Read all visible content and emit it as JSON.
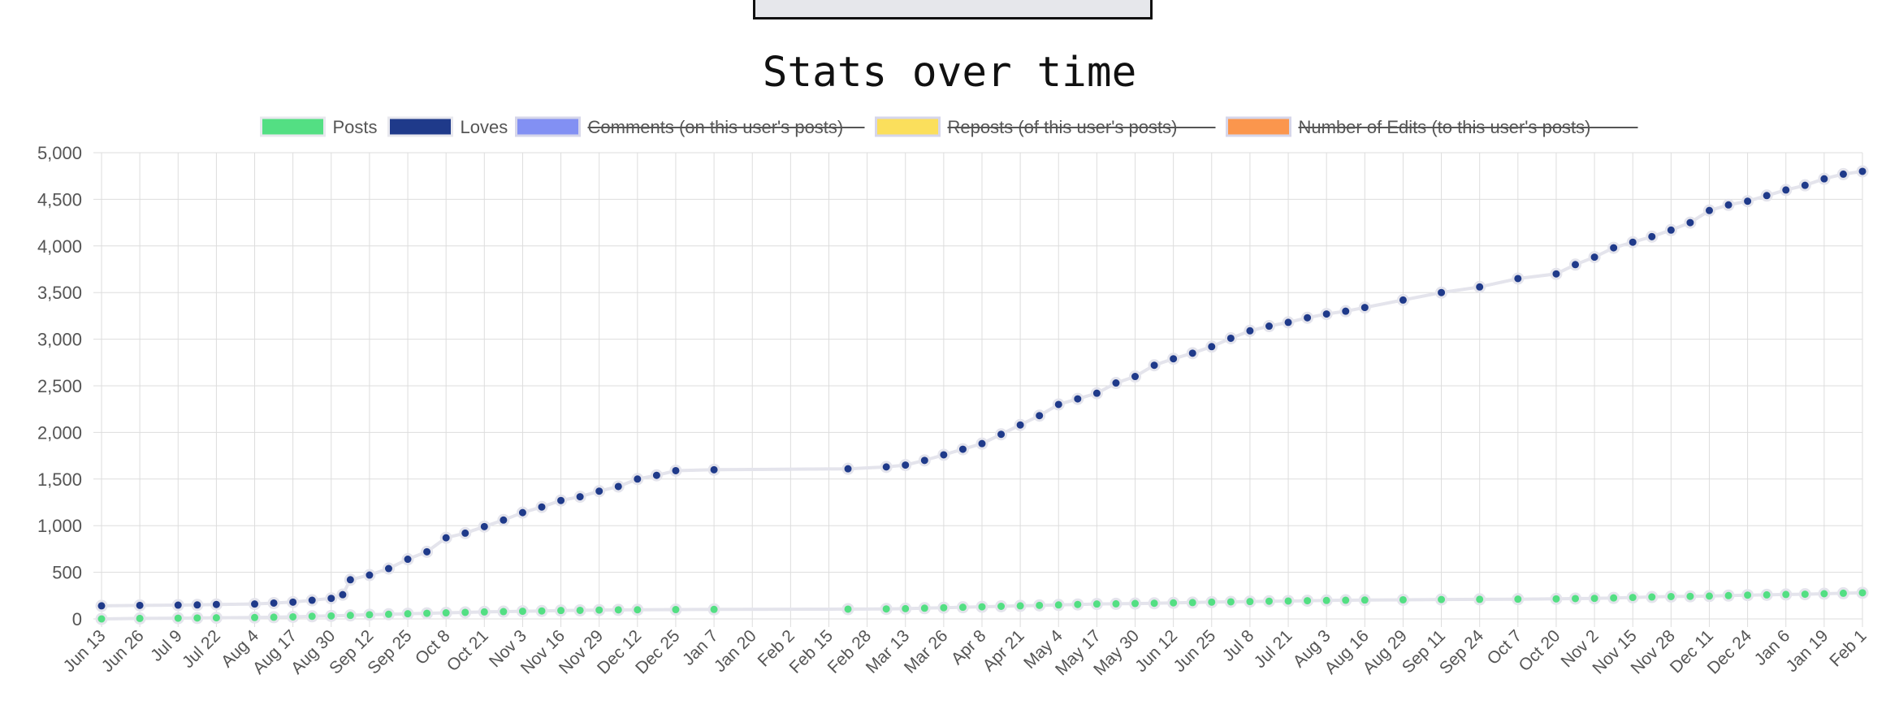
{
  "chart_data": {
    "type": "line",
    "title": "Stats over time",
    "xlabel": "",
    "ylabel": "",
    "ylim": [
      0,
      5000
    ],
    "y_ticks": [
      0,
      500,
      1000,
      1500,
      2000,
      2500,
      3000,
      3500,
      4000,
      4500,
      5000
    ],
    "y_tick_labels": [
      "0",
      "500",
      "1,000",
      "1,500",
      "2,000",
      "2,500",
      "3,000",
      "3,500",
      "4,000",
      "4,500",
      "5,000"
    ],
    "x_tick_labels": [
      "Jun 13",
      "Jun 26",
      "Jul 9",
      "Jul 22",
      "Aug 4",
      "Aug 17",
      "Aug 30",
      "Sep 12",
      "Sep 25",
      "Oct 8",
      "Oct 21",
      "Nov 3",
      "Nov 16",
      "Nov 29",
      "Dec 12",
      "Dec 25",
      "Jan 7",
      "Jan 20",
      "Feb 2",
      "Feb 15",
      "Feb 28",
      "Mar 13",
      "Mar 26",
      "Apr 8",
      "Apr 21",
      "May 4",
      "May 17",
      "May 30",
      "Jun 12",
      "Jun 25",
      "Jul 8",
      "Jul 21",
      "Aug 3",
      "Aug 16",
      "Aug 29",
      "Sep 11",
      "Sep 24",
      "Oct 7",
      "Oct 20",
      "Nov 2",
      "Nov 15",
      "Nov 28",
      "Dec 11",
      "Dec 24",
      "Jan 6",
      "Jan 19",
      "Feb 1"
    ],
    "grid": true,
    "legend_position": "top",
    "legend": [
      {
        "label": "Posts",
        "color": "#53df83",
        "hidden": false
      },
      {
        "label": "Loves",
        "color": "#1f3a8a",
        "hidden": false
      },
      {
        "label": "Comments (on this user's posts)",
        "color": "#8290f3",
        "hidden": true
      },
      {
        "label": "Reposts (of this user's posts)",
        "color": "#fbdf5c",
        "hidden": true
      },
      {
        "label": "Number of Edits (to this user's posts)",
        "color": "#fb964d",
        "hidden": true
      }
    ],
    "x_index_note": "x values are positions on the category axis, 0 = Jun 13 ... 46 = Feb 1",
    "series": [
      {
        "name": "Posts",
        "color": "#53df83",
        "x": [
          0,
          1,
          2,
          2.5,
          3,
          4,
          4.5,
          5,
          5.5,
          6,
          6.5,
          7,
          7.5,
          8,
          8.5,
          9,
          9.5,
          10,
          10.5,
          11,
          11.5,
          12,
          12.5,
          13,
          13.5,
          14,
          15,
          16,
          19.5,
          20.5,
          21,
          21.5,
          22,
          22.5,
          23,
          23.5,
          24,
          24.5,
          25,
          25.5,
          26,
          26.5,
          27,
          27.5,
          28,
          28.5,
          29,
          29.5,
          30,
          30.5,
          31,
          31.5,
          32,
          32.5,
          33,
          34,
          35,
          36,
          37,
          38,
          38.5,
          39,
          39.5,
          40,
          40.5,
          41,
          41.5,
          42,
          42.5,
          43,
          43.5,
          44,
          44.5,
          45,
          45.5,
          46
        ],
        "values": [
          0,
          5,
          8,
          10,
          12,
          15,
          18,
          22,
          28,
          32,
          38,
          45,
          50,
          55,
          60,
          65,
          70,
          75,
          78,
          82,
          85,
          90,
          92,
          95,
          97,
          98,
          100,
          102,
          105,
          107,
          110,
          115,
          120,
          125,
          130,
          135,
          140,
          145,
          150,
          155,
          160,
          162,
          165,
          168,
          172,
          175,
          180,
          183,
          186,
          190,
          192,
          195,
          198,
          200,
          202,
          205,
          208,
          210,
          212,
          215,
          218,
          220,
          225,
          230,
          235,
          240,
          242,
          245,
          250,
          255,
          258,
          262,
          265,
          270,
          275,
          280
        ]
      },
      {
        "name": "Loves",
        "color": "#1f3a8a",
        "x": [
          0,
          1,
          2,
          2.5,
          3,
          4,
          4.5,
          5,
          5.5,
          6,
          6.3,
          6.5,
          7,
          7.5,
          8,
          8.5,
          9,
          9.5,
          10,
          10.5,
          11,
          11.5,
          12,
          12.5,
          13,
          13.5,
          14,
          14.5,
          15,
          16,
          19.5,
          20.5,
          21,
          21.5,
          22,
          22.5,
          23,
          23.5,
          24,
          24.5,
          25,
          25.5,
          26,
          26.5,
          27,
          27.5,
          28,
          28.5,
          29,
          29.5,
          30,
          30.5,
          31,
          31.5,
          32,
          32.5,
          33,
          34,
          35,
          36,
          37,
          38,
          38.5,
          39,
          39.5,
          40,
          40.5,
          41,
          41.5,
          42,
          42.5,
          43,
          43.5,
          44,
          44.5,
          45,
          45.5,
          46
        ],
        "values": [
          140,
          145,
          148,
          150,
          155,
          160,
          170,
          180,
          200,
          220,
          260,
          420,
          470,
          540,
          640,
          720,
          870,
          920,
          990,
          1060,
          1140,
          1200,
          1270,
          1310,
          1370,
          1420,
          1500,
          1540,
          1590,
          1600,
          1610,
          1630,
          1650,
          1700,
          1760,
          1820,
          1880,
          1980,
          2080,
          2180,
          2300,
          2360,
          2420,
          2530,
          2600,
          2720,
          2790,
          2850,
          2920,
          3010,
          3090,
          3140,
          3180,
          3230,
          3270,
          3300,
          3340,
          3420,
          3500,
          3560,
          3650,
          3700,
          3800,
          3880,
          3980,
          4040,
          4100,
          4170,
          4250,
          4380,
          4440,
          4480,
          4540,
          4600,
          4650,
          4720,
          4770,
          4800
        ]
      }
    ]
  }
}
